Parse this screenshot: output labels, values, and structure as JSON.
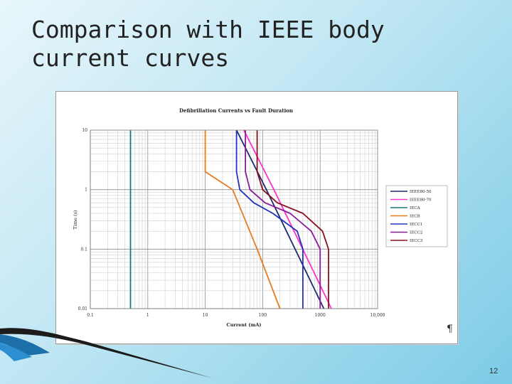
{
  "slide": {
    "title": "Comparison with IEEE body current curves",
    "page_number": "12",
    "pilcrow": "¶"
  },
  "chart_data": {
    "type": "line",
    "title": "Defibrillation Currents vs Fault Duration",
    "xlabel": "Current (mA)",
    "ylabel": "Time (s)",
    "xscale": "log",
    "yscale": "log",
    "xlim": [
      0.1,
      10000
    ],
    "ylim": [
      0.01,
      10
    ],
    "x_ticks": [
      "0.1",
      "1",
      "10",
      "100",
      "1000",
      "10,000"
    ],
    "y_ticks": [
      "10",
      "1",
      "0.1",
      "0.01"
    ],
    "grid": true,
    "legend_position": "right",
    "series": [
      {
        "name": "IEEE80-50",
        "color": "#1f2a6e",
        "points": [
          [
            35,
            10
          ],
          [
            116,
            1
          ],
          [
            367,
            0.1
          ],
          [
            1160,
            0.01
          ]
        ]
      },
      {
        "name": "IEEE80-70",
        "color": "#ff33cc",
        "points": [
          [
            47,
            10
          ],
          [
            157,
            1
          ],
          [
            497,
            0.1
          ],
          [
            1570,
            0.01
          ]
        ]
      },
      {
        "name": "IECA",
        "color": "#167a78",
        "points": [
          [
            0.5,
            10
          ],
          [
            0.5,
            0.01
          ]
        ]
      },
      {
        "name": "IECB",
        "color": "#e87b1e",
        "points": [
          [
            10,
            10
          ],
          [
            10,
            2
          ],
          [
            30,
            1
          ],
          [
            80,
            0.1
          ],
          [
            200,
            0.01
          ]
        ]
      },
      {
        "name": "IECC1",
        "color": "#2233bb",
        "points": [
          [
            35,
            10
          ],
          [
            35,
            2
          ],
          [
            40,
            1
          ],
          [
            70,
            0.6
          ],
          [
            150,
            0.4
          ],
          [
            400,
            0.2
          ],
          [
            500,
            0.1
          ],
          [
            500,
            0.01
          ]
        ]
      },
      {
        "name": "IECC2",
        "color": "#8a1a9a",
        "points": [
          [
            50,
            10
          ],
          [
            50,
            2
          ],
          [
            60,
            1
          ],
          [
            110,
            0.6
          ],
          [
            300,
            0.4
          ],
          [
            700,
            0.2
          ],
          [
            1000,
            0.1
          ],
          [
            1000,
            0.01
          ]
        ]
      },
      {
        "name": "IECC3",
        "color": "#8a1020",
        "points": [
          [
            80,
            10
          ],
          [
            80,
            2
          ],
          [
            100,
            1
          ],
          [
            180,
            0.6
          ],
          [
            500,
            0.4
          ],
          [
            1100,
            0.2
          ],
          [
            1400,
            0.1
          ],
          [
            1400,
            0.01
          ]
        ]
      }
    ]
  }
}
